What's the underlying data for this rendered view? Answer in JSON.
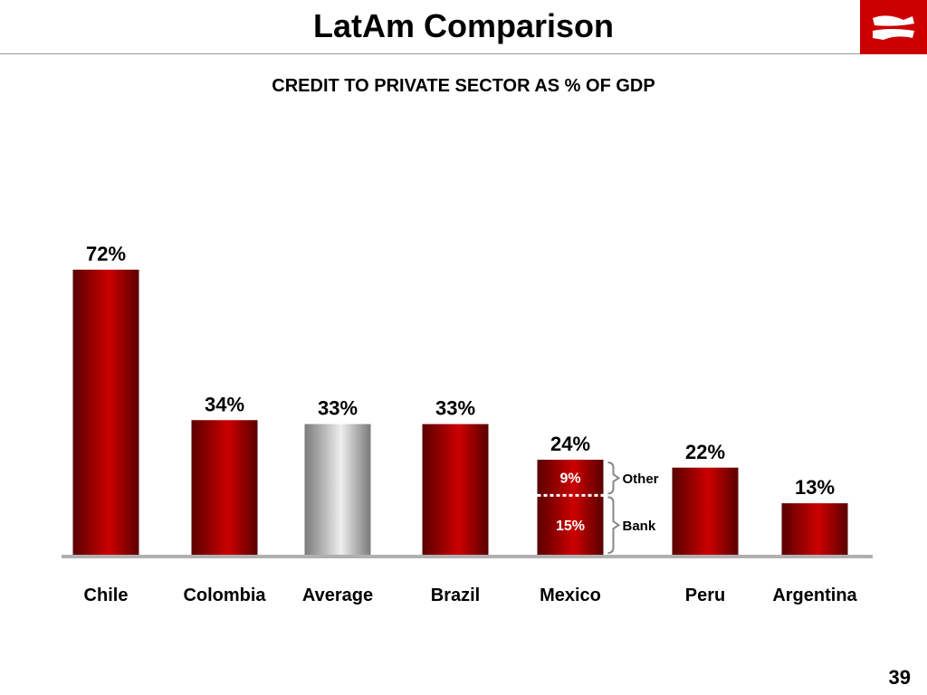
{
  "slide": {
    "title": "LatAm Comparison",
    "subtitle": "CREDIT TO PRIVATE SECTOR AS % OF GDP",
    "page_number": "39"
  },
  "colors": {
    "bar_red": "#cc0000",
    "bar_dark": "#5a0000",
    "average_light": "#eeeeee",
    "average_dark": "#7a7a7a",
    "axis": "#b0b0b0",
    "logo": "#cc0000"
  },
  "chart_data": {
    "type": "bar",
    "title": "CREDIT TO PRIVATE SECTOR AS % OF GDP",
    "categories": [
      "Chile",
      "Colombia",
      "Average",
      "Brazil",
      "Mexico",
      "Peru",
      "Argentina"
    ],
    "values": [
      72,
      34,
      33,
      33,
      24,
      22,
      13
    ],
    "labels": [
      "72%",
      "34%",
      "33%",
      "33%",
      "24%",
      "22%",
      "13%"
    ],
    "highlight_category": "Average",
    "stacked_breakdown": {
      "category": "Mexico",
      "segments": [
        {
          "name": "Bank",
          "value": 15,
          "label": "15%"
        },
        {
          "name": "Other",
          "value": 9,
          "label": "9%"
        }
      ]
    },
    "ylim": [
      0,
      72
    ],
    "grid": false,
    "legend": "none"
  }
}
